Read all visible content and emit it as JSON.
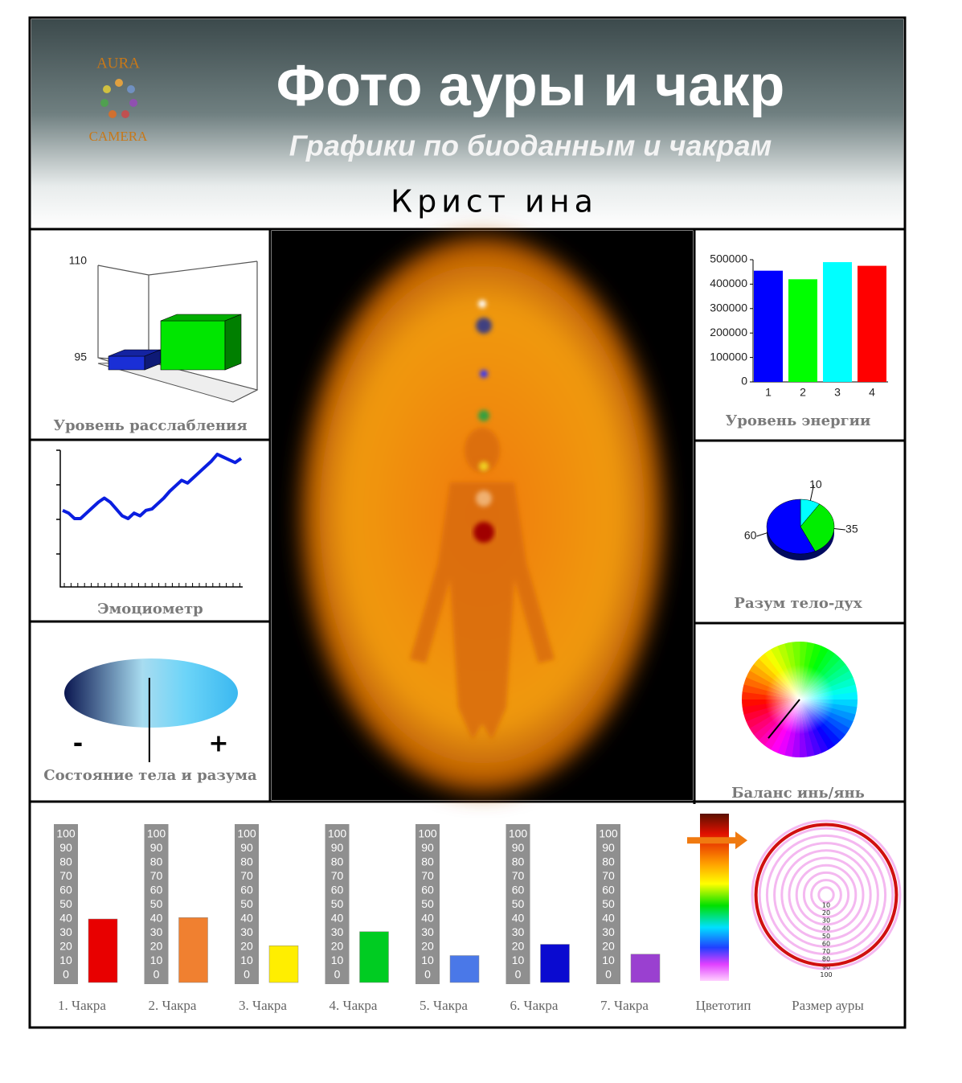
{
  "header": {
    "logo_top": "AURA",
    "logo_bottom": "CAMERA",
    "title": "Фото ауры и чакр",
    "subtitle": "Графики по биоданным и чакрам",
    "name": "Крист ина"
  },
  "chart_data": [
    {
      "type": "bar3d",
      "title": "Уровень расслабления",
      "values": [
        96.5,
        102
      ],
      "colors": [
        "#1a2fd6",
        "#00e600"
      ],
      "ylim": [
        95,
        110
      ],
      "yticks": [
        95,
        110
      ]
    },
    {
      "type": "bar",
      "title": "Уровень энергии",
      "categories": [
        "1",
        "2",
        "3",
        "4"
      ],
      "values": [
        455000,
        420000,
        490000,
        475000
      ],
      "colors": [
        "#0000ff",
        "#00ff00",
        "#00ffff",
        "#ff0000"
      ],
      "ylim": [
        0,
        500000
      ],
      "yticks": [
        0,
        100000,
        200000,
        300000,
        400000,
        500000
      ]
    },
    {
      "type": "line",
      "title": "Эмоциометр",
      "values": [
        56,
        54,
        50,
        50,
        54,
        58,
        62,
        65,
        62,
        57,
        52,
        50,
        54,
        52,
        56,
        57,
        61,
        65,
        70,
        74,
        78,
        76,
        80,
        84,
        88,
        92,
        97,
        95,
        93,
        91,
        94
      ],
      "color": "#0a1ee0",
      "ylim": [
        0,
        100
      ]
    },
    {
      "type": "pie",
      "title": "Разум тело-дух",
      "values": [
        10,
        35,
        60
      ],
      "colors": [
        "#00ffff",
        "#00ee00",
        "#0000ff"
      ]
    },
    {
      "type": "gauge",
      "title": "Состояние тела и разума",
      "min_label": "-",
      "max_label": "+",
      "xlim": [
        -1,
        1
      ],
      "value": -0.02
    },
    {
      "type": "wheel",
      "title": "Баланс инь/янь",
      "xlim": [
        0,
        360
      ],
      "value": 219
    },
    {
      "type": "chakra",
      "categories": [
        "1. Чакра",
        "2. Чакра",
        "3. Чакра",
        "4. Чакра",
        "5. Чакра",
        "6. Чакра",
        "7. Чакра"
      ],
      "values": [
        40,
        41,
        21,
        31,
        14,
        22,
        15
      ],
      "colors": [
        "#e80000",
        "#f08030",
        "#ffee00",
        "#00cc22",
        "#4a78e8",
        "#0a0ad0",
        "#9a40d0"
      ],
      "ylim": [
        0,
        100
      ],
      "yticks": [
        0,
        10,
        20,
        30,
        40,
        50,
        60,
        70,
        80,
        90,
        100
      ]
    },
    {
      "type": "colortype",
      "title": "Цветотип",
      "ylim": [
        0,
        100
      ],
      "value": 16
    },
    {
      "type": "aura-size",
      "title": "Размер ауры",
      "rings": [
        10,
        20,
        30,
        40,
        50,
        60,
        70,
        80,
        90,
        100
      ],
      "xlim": [
        0,
        100
      ],
      "value": 95
    }
  ]
}
